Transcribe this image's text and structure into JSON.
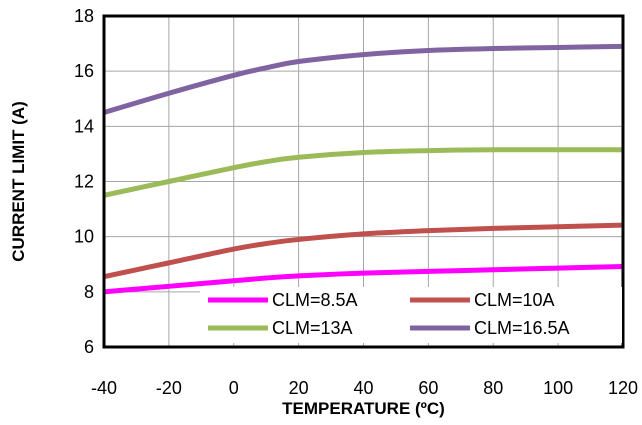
{
  "chart_data": {
    "type": "line",
    "title": "",
    "xlabel": "TEMPERATURE (ºC)",
    "ylabel": "CURRENT LIMIT (A)",
    "xlim": [
      -40,
      120
    ],
    "ylim": [
      6,
      18
    ],
    "xticks": [
      "-40",
      "-20",
      "0",
      "20",
      "40",
      "60",
      "80",
      "100",
      "120"
    ],
    "yticks": [
      "6",
      "8",
      "10",
      "12",
      "14",
      "16",
      "18"
    ],
    "grid": true,
    "legend_position": "bottom-inside",
    "x": [
      -40,
      -20,
      0,
      10,
      20,
      40,
      60,
      80,
      100,
      120
    ],
    "series": [
      {
        "name": "CLM=8.5A",
        "color": "#ff00ff",
        "values": [
          8.0,
          8.2,
          8.4,
          8.5,
          8.58,
          8.68,
          8.74,
          8.8,
          8.86,
          8.92
        ]
      },
      {
        "name": "CLM=10A",
        "color": "#c0504d",
        "values": [
          8.55,
          9.05,
          9.55,
          9.75,
          9.9,
          10.1,
          10.22,
          10.3,
          10.36,
          10.42
        ]
      },
      {
        "name": "CLM=13A",
        "color": "#9bbb59",
        "values": [
          11.5,
          12.0,
          12.5,
          12.72,
          12.88,
          13.05,
          13.12,
          13.15,
          13.15,
          13.15
        ]
      },
      {
        "name": "CLM=16.5A",
        "color": "#8064a2",
        "values": [
          14.5,
          15.2,
          15.85,
          16.12,
          16.35,
          16.6,
          16.75,
          16.82,
          16.86,
          16.9
        ]
      }
    ]
  }
}
